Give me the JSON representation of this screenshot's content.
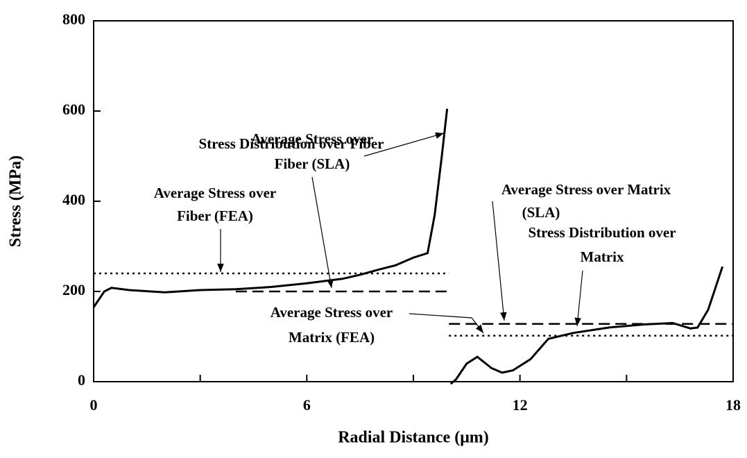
{
  "chart_data": {
    "type": "line",
    "xlabel": "Radial Distance (μm)",
    "ylabel": "Stress (MPa)",
    "xlim": [
      0,
      18
    ],
    "ylim": [
      0,
      800
    ],
    "xticks": [
      0,
      6,
      12,
      18
    ],
    "xminor_ticks": [
      3,
      9,
      15
    ],
    "yticks": [
      0,
      200,
      400,
      600,
      800
    ],
    "series": [
      {
        "color": "#000000",
        "style": "solid",
        "x": [
          0,
          0.3,
          0.5,
          1,
          2,
          3,
          4,
          5,
          6,
          7,
          7.5,
          8,
          8.5,
          9,
          9.4,
          9.6,
          9.8,
          9.95
        ],
        "values": [
          165,
          200,
          208,
          203,
          198,
          203,
          205,
          210,
          218,
          228,
          237,
          248,
          258,
          275,
          285,
          370,
          500,
          605
        ]
      },
      {
        "color": "#000000",
        "style": "solid",
        "x": [
          10.05,
          10.2,
          10.5,
          10.8,
          11.2,
          11.5,
          11.8,
          12.3,
          12.8,
          13.5,
          14.5,
          15.5,
          16.3,
          16.8,
          17,
          17.3,
          17.7
        ],
        "values": [
          -5,
          5,
          40,
          55,
          30,
          20,
          25,
          50,
          95,
          108,
          120,
          127,
          130,
          118,
          120,
          160,
          255
        ]
      },
      {
        "color": "#000000",
        "style": "dotted",
        "x": [
          0,
          10
        ],
        "values": [
          240,
          240
        ]
      },
      {
        "color": "#000000",
        "style": "dashed",
        "x": [
          4,
          10
        ],
        "values": [
          200,
          200
        ]
      },
      {
        "color": "#000000",
        "style": "dashed",
        "x": [
          10,
          18
        ],
        "values": [
          128,
          128
        ]
      },
      {
        "color": "#000000",
        "style": "dotted",
        "x": [
          10,
          18
        ],
        "values": [
          102,
          102
        ]
      }
    ],
    "annotations": [
      {
        "lines": [
          "Stress Distribution over Fiber"
        ]
      },
      {
        "lines": [
          "Average Stress over",
          "Fiber (SLA)"
        ]
      },
      {
        "lines": [
          "Average Stress over",
          "Fiber (FEA)"
        ]
      },
      {
        "lines": [
          "Average Stress over Matrix",
          "(SLA)"
        ]
      },
      {
        "lines": [
          "Stress Distribution over",
          "Matrix"
        ]
      },
      {
        "lines": [
          "Average Stress over",
          "Matrix (FEA)"
        ]
      }
    ]
  }
}
